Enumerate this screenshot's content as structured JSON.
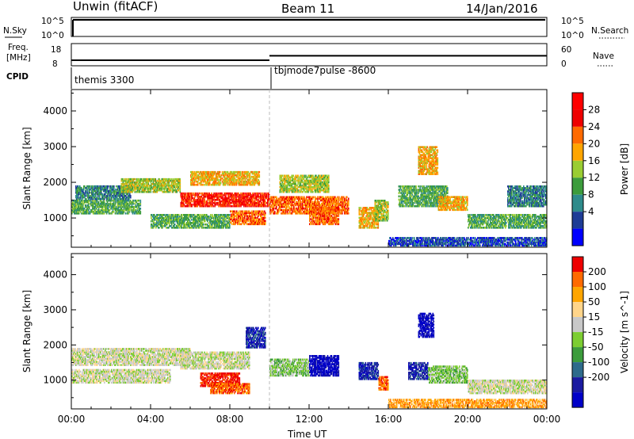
{
  "header": {
    "left": "Unwin (fitACF)",
    "center": "Beam 11",
    "right": "14/Jan/2016"
  },
  "strips": {
    "nsky_label": "N.Sky",
    "nsky_ticks": [
      "10^5",
      "10^0"
    ],
    "nsearch_label": "N.Search",
    "nsearch_ticks": [
      "10^5",
      "10^0"
    ],
    "freq_label_1": "Freq.",
    "freq_label_2": "[MHz]",
    "freq_ticks": [
      "18",
      "8"
    ],
    "nave_label": "Nave",
    "nave_ticks": [
      "60",
      "0"
    ],
    "cpid_label": "CPID",
    "cpid_segments": [
      {
        "start_hour": 0,
        "name": "themis 3300"
      },
      {
        "start_hour": 10,
        "name": "tbjmode7pulse -8600"
      }
    ],
    "freq_mhz_levels": [
      {
        "start_hour": 0,
        "end_hour": 10,
        "freq": 10.5
      },
      {
        "start_hour": 10,
        "end_hour": 24,
        "freq": 12.5
      }
    ]
  },
  "chart_data": [
    {
      "type": "heatmap",
      "name": "power",
      "ylabel": "Slant Range [km]",
      "xlabel": "Time UT",
      "xlim_hours": [
        0,
        24
      ],
      "xtick_labels": [
        "00:00",
        "04:00",
        "08:00",
        "12:00",
        "16:00",
        "20:00",
        "00:00"
      ],
      "xtick_hours": [
        0,
        4,
        8,
        12,
        16,
        20,
        24
      ],
      "ylim_km": [
        180,
        4600
      ],
      "ytick_values": [
        1000,
        2000,
        3000,
        4000
      ],
      "ytick_labels": [
        "1000",
        "2000",
        "3000",
        "4000"
      ],
      "colorbar": {
        "label": "Power [dB]",
        "levels": [
          {
            "text": "28",
            "value": 28,
            "color": "#ee0000"
          },
          {
            "text": "24",
            "value": 24,
            "color": "#ff6a00"
          },
          {
            "text": "20",
            "value": 20,
            "color": "#ffa500"
          },
          {
            "text": "16",
            "value": 16,
            "color": "#9acd32"
          },
          {
            "text": "12",
            "value": 12,
            "color": "#3c9c3c"
          },
          {
            "text": "8",
            "value": 8,
            "color": "#2e8b8b"
          },
          {
            "text": "4",
            "value": 4,
            "color": "#1e3c96"
          }
        ],
        "bands": [
          "#0000ff",
          "#1e3c96",
          "#2e8b8b",
          "#3c9c3c",
          "#9acd32",
          "#ffa500",
          "#ff6a00",
          "#ee0000",
          "#ff0000"
        ]
      },
      "echo_regions": [
        {
          "t0": 0.0,
          "t1": 3.5,
          "r0": 1100,
          "r1": 1500,
          "level": 3
        },
        {
          "t0": 0.2,
          "t1": 3.0,
          "r0": 1500,
          "r1": 1900,
          "level": 2
        },
        {
          "t0": 2.5,
          "t1": 5.5,
          "r0": 1700,
          "r1": 2100,
          "level": 4
        },
        {
          "t0": 5.5,
          "t1": 10.0,
          "r0": 1300,
          "r1": 1700,
          "level": 7
        },
        {
          "t0": 6.0,
          "t1": 9.5,
          "r0": 1900,
          "r1": 2300,
          "level": 5
        },
        {
          "t0": 4.0,
          "t1": 8.0,
          "r0": 700,
          "r1": 1100,
          "level": 3
        },
        {
          "t0": 8.0,
          "t1": 9.8,
          "r0": 800,
          "r1": 1200,
          "level": 6
        },
        {
          "t0": 10.0,
          "t1": 14.0,
          "r0": 1100,
          "r1": 1600,
          "level": 6
        },
        {
          "t0": 10.5,
          "t1": 13.0,
          "r0": 1700,
          "r1": 2200,
          "level": 4
        },
        {
          "t0": 12.0,
          "t1": 13.5,
          "r0": 800,
          "r1": 1300,
          "level": 6
        },
        {
          "t0": 14.5,
          "t1": 15.5,
          "r0": 700,
          "r1": 1300,
          "level": 5
        },
        {
          "t0": 15.3,
          "t1": 16.0,
          "r0": 900,
          "r1": 1500,
          "level": 4
        },
        {
          "t0": 16.5,
          "t1": 19.0,
          "r0": 1300,
          "r1": 1900,
          "level": 3
        },
        {
          "t0": 18.5,
          "t1": 20.0,
          "r0": 1200,
          "r1": 1600,
          "level": 5
        },
        {
          "t0": 20.0,
          "t1": 24.0,
          "r0": 700,
          "r1": 1100,
          "level": 3
        },
        {
          "t0": 16.0,
          "t1": 24.0,
          "r0": 200,
          "r1": 450,
          "level": 1
        },
        {
          "t0": 17.5,
          "t1": 18.5,
          "r0": 2200,
          "r1": 3000,
          "level": 5
        },
        {
          "t0": 22.0,
          "t1": 24.0,
          "r0": 1300,
          "r1": 1900,
          "level": 2
        }
      ]
    },
    {
      "type": "heatmap",
      "name": "velocity",
      "ylabel": "Slant Range [km]",
      "xlabel": "Time UT",
      "xlim_hours": [
        0,
        24
      ],
      "xtick_labels": [
        "00:00",
        "04:00",
        "08:00",
        "12:00",
        "16:00",
        "20:00",
        "00:00"
      ],
      "xtick_hours": [
        0,
        4,
        8,
        12,
        16,
        20,
        24
      ],
      "ylim_km": [
        180,
        4600
      ],
      "ytick_values": [
        1000,
        2000,
        3000,
        4000
      ],
      "ytick_labels": [
        "1000",
        "2000",
        "3000",
        "4000"
      ],
      "colorbar": {
        "label": "Velocity [m s^-1]",
        "levels": [
          {
            "text": "200",
            "value": 200,
            "color": "#1a1aa0"
          },
          {
            "text": "100",
            "value": 100,
            "color": "#2e6b8b"
          },
          {
            "text": "50",
            "value": 50,
            "color": "#3c9c3c"
          },
          {
            "text": "15",
            "value": 15,
            "color": "#7ccd32"
          },
          {
            "text": "-15",
            "value": -15,
            "color": "#c8c8c8"
          },
          {
            "text": "-50",
            "value": -50,
            "color": "#ffd58a"
          },
          {
            "text": "-100",
            "value": -100,
            "color": "#ffa500"
          },
          {
            "text": "-200",
            "value": -200,
            "color": "#ff6a00"
          }
        ],
        "bands": [
          "#0000c8",
          "#1a1aa0",
          "#2e6b8b",
          "#3c9c3c",
          "#7ccd32",
          "#c8c8c8",
          "#ffd58a",
          "#ffa500",
          "#ff6a00",
          "#ee0000"
        ]
      },
      "echo_regions": [
        {
          "t0": 0.0,
          "t1": 6.0,
          "r0": 1400,
          "r1": 1900,
          "level": 5
        },
        {
          "t0": 0.0,
          "t1": 5.0,
          "r0": 900,
          "r1": 1300,
          "level": 5
        },
        {
          "t0": 5.5,
          "t1": 9.0,
          "r0": 1300,
          "r1": 1800,
          "level": 5
        },
        {
          "t0": 6.5,
          "t1": 8.5,
          "r0": 800,
          "r1": 1200,
          "level": 9
        },
        {
          "t0": 7.0,
          "t1": 9.0,
          "r0": 600,
          "r1": 900,
          "level": 8
        },
        {
          "t0": 8.8,
          "t1": 9.8,
          "r0": 1900,
          "r1": 2500,
          "level": 1
        },
        {
          "t0": 10.0,
          "t1": 12.0,
          "r0": 1100,
          "r1": 1600,
          "level": 4
        },
        {
          "t0": 12.0,
          "t1": 13.5,
          "r0": 1100,
          "r1": 1700,
          "level": 0
        },
        {
          "t0": 14.5,
          "t1": 15.5,
          "r0": 1000,
          "r1": 1500,
          "level": 1
        },
        {
          "t0": 15.5,
          "t1": 16.0,
          "r0": 700,
          "r1": 1100,
          "level": 8
        },
        {
          "t0": 17.0,
          "t1": 18.0,
          "r0": 1000,
          "r1": 1500,
          "level": 1
        },
        {
          "t0": 18.0,
          "t1": 20.0,
          "r0": 900,
          "r1": 1400,
          "level": 4
        },
        {
          "t0": 20.0,
          "t1": 24.0,
          "r0": 600,
          "r1": 1000,
          "level": 5
        },
        {
          "t0": 16.0,
          "t1": 24.0,
          "r0": 200,
          "r1": 450,
          "level": 7
        },
        {
          "t0": 17.5,
          "t1": 18.3,
          "r0": 2200,
          "r1": 2900,
          "level": 0
        }
      ]
    }
  ]
}
